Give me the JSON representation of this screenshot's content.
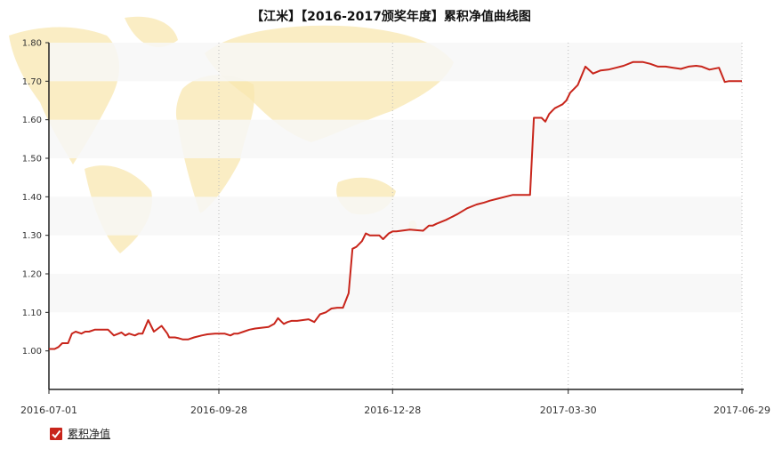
{
  "chart_data": {
    "type": "line",
    "title": "【江米】【2016-2017颁奖年度】累积净值曲线图",
    "xlabel": "",
    "ylabel": "",
    "ylim": [
      0.9,
      1.8
    ],
    "yticks": [
      "1.00",
      "1.10",
      "1.20",
      "1.30",
      "1.40",
      "1.50",
      "1.60",
      "1.70",
      "1.80"
    ],
    "xticks": [
      "2016-07-01",
      "2016-09-28",
      "2016-12-28",
      "2017-03-30",
      "2017-06-29"
    ],
    "xlim": [
      "2016-07-01",
      "2017-06-29"
    ],
    "grid": "alternating horizontal bands, dotted vertical lines at x ticks",
    "background": "world map watermark",
    "legend_position": "bottom-left",
    "colors": {
      "line": "#c8251b",
      "band": "#f7f7f7",
      "map": "#f8e7b0"
    },
    "series": [
      {
        "name": "累积净值",
        "x": [
          "2016-07-01",
          "2016-07-04",
          "2016-07-06",
          "2016-07-08",
          "2016-07-11",
          "2016-07-13",
          "2016-07-15",
          "2016-07-18",
          "2016-07-20",
          "2016-07-22",
          "2016-07-25",
          "2016-07-28",
          "2016-08-01",
          "2016-08-04",
          "2016-08-08",
          "2016-08-10",
          "2016-08-12",
          "2016-08-15",
          "2016-08-17",
          "2016-08-19",
          "2016-08-22",
          "2016-08-25",
          "2016-08-29",
          "2016-09-01",
          "2016-09-02",
          "2016-09-05",
          "2016-09-07",
          "2016-09-09",
          "2016-09-12",
          "2016-09-15",
          "2016-09-19",
          "2016-09-22",
          "2016-09-26",
          "2016-09-29",
          "2016-10-01",
          "2016-10-04",
          "2016-10-06",
          "2016-10-08",
          "2016-10-11",
          "2016-10-14",
          "2016-10-17",
          "2016-10-20",
          "2016-10-24",
          "2016-10-27",
          "2016-10-29",
          "2016-10-31",
          "2016-11-01",
          "2016-11-03",
          "2016-11-05",
          "2016-11-08",
          "2016-11-11",
          "2016-11-14",
          "2016-11-17",
          "2016-11-20",
          "2016-11-23",
          "2016-11-26",
          "2016-11-29",
          "2016-12-02",
          "2016-12-05",
          "2016-12-07",
          "2016-12-09",
          "2016-12-12",
          "2016-12-14",
          "2016-12-16",
          "2016-12-19",
          "2016-12-21",
          "2016-12-23",
          "2016-12-26",
          "2016-12-28",
          "2016-12-30",
          "2017-01-06",
          "2017-01-13",
          "2017-01-16",
          "2017-01-18",
          "2017-01-20",
          "2017-01-25",
          "2017-01-31",
          "2017-02-05",
          "2017-02-10",
          "2017-02-14",
          "2017-02-17",
          "2017-02-21",
          "2017-02-25",
          "2017-03-01",
          "2017-03-07",
          "2017-03-10",
          "2017-03-12",
          "2017-03-14",
          "2017-03-16",
          "2017-03-18",
          "2017-03-20",
          "2017-03-22",
          "2017-03-23",
          "2017-03-25",
          "2017-03-27",
          "2017-03-29",
          "2017-03-31",
          "2017-04-04",
          "2017-04-08",
          "2017-04-12",
          "2017-04-16",
          "2017-04-20",
          "2017-04-24",
          "2017-04-28",
          "2017-05-03",
          "2017-05-08",
          "2017-05-12",
          "2017-05-16",
          "2017-05-20",
          "2017-05-24",
          "2017-05-28",
          "2017-06-01",
          "2017-06-05",
          "2017-06-08",
          "2017-06-12",
          "2017-06-17",
          "2017-06-20",
          "2017-06-22",
          "2017-06-23",
          "2017-06-26",
          "2017-06-29"
        ],
        "values": [
          1.005,
          1.005,
          1.01,
          1.02,
          1.02,
          1.045,
          1.05,
          1.045,
          1.05,
          1.05,
          1.055,
          1.055,
          1.055,
          1.04,
          1.048,
          1.04,
          1.045,
          1.04,
          1.045,
          1.045,
          1.08,
          1.05,
          1.065,
          1.045,
          1.035,
          1.035,
          1.033,
          1.03,
          1.03,
          1.035,
          1.04,
          1.043,
          1.045,
          1.045,
          1.045,
          1.04,
          1.045,
          1.045,
          1.05,
          1.055,
          1.058,
          1.06,
          1.062,
          1.07,
          1.085,
          1.075,
          1.07,
          1.075,
          1.078,
          1.078,
          1.08,
          1.082,
          1.075,
          1.095,
          1.1,
          1.11,
          1.112,
          1.112,
          1.15,
          1.265,
          1.27,
          1.285,
          1.305,
          1.3,
          1.3,
          1.3,
          1.29,
          1.305,
          1.31,
          1.31,
          1.315,
          1.312,
          1.325,
          1.325,
          1.33,
          1.34,
          1.355,
          1.37,
          1.38,
          1.385,
          1.39,
          1.395,
          1.4,
          1.405,
          1.405,
          1.405,
          1.605,
          1.605,
          1.605,
          1.595,
          1.615,
          1.625,
          1.63,
          1.635,
          1.64,
          1.65,
          1.67,
          1.69,
          1.738,
          1.72,
          1.728,
          1.73,
          1.735,
          1.74,
          1.75,
          1.75,
          1.745,
          1.738,
          1.738,
          1.735,
          1.732,
          1.738,
          1.74,
          1.738,
          1.73,
          1.735,
          1.698,
          1.7,
          1.7,
          1.7,
          1.7
        ]
      }
    ]
  },
  "legend": {
    "label": "累积净值",
    "check_icon": "check-icon"
  }
}
